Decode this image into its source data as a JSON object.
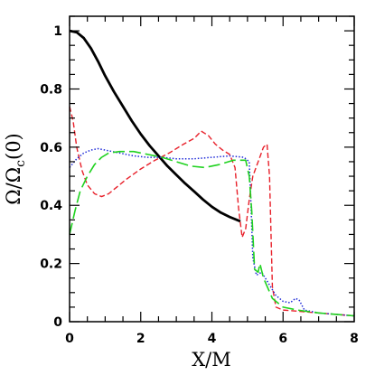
{
  "chart_data": {
    "type": "line",
    "xlabel": "X/M",
    "ylabel": "Ω/Ω",
    "ylabel_subscript": "c",
    "ylabel_suffix": "(0)",
    "xlim": [
      0,
      8
    ],
    "ylim": [
      0,
      1.05
    ],
    "x_ticks": [
      0,
      2,
      4,
      6,
      8
    ],
    "y_ticks": [
      0,
      0.2,
      0.4,
      0.6,
      0.8,
      1
    ],
    "grid": false,
    "series": [
      {
        "color": "#000000",
        "dash": "solid",
        "points": [
          [
            0,
            1.0
          ],
          [
            0.2,
            0.995
          ],
          [
            0.4,
            0.975
          ],
          [
            0.6,
            0.94
          ],
          [
            0.8,
            0.895
          ],
          [
            1.0,
            0.845
          ],
          [
            1.25,
            0.79
          ],
          [
            1.5,
            0.74
          ],
          [
            1.75,
            0.69
          ],
          [
            2.0,
            0.645
          ],
          [
            2.25,
            0.605
          ],
          [
            2.5,
            0.57
          ],
          [
            2.75,
            0.535
          ],
          [
            3.0,
            0.505
          ],
          [
            3.25,
            0.475
          ],
          [
            3.5,
            0.448
          ],
          [
            3.75,
            0.42
          ],
          [
            4.0,
            0.395
          ],
          [
            4.25,
            0.375
          ],
          [
            4.5,
            0.36
          ],
          [
            4.8,
            0.345
          ]
        ]
      },
      {
        "color": "#e8202a",
        "dash": "short-dash",
        "points": [
          [
            0,
            0.74
          ],
          [
            0.1,
            0.69
          ],
          [
            0.2,
            0.6
          ],
          [
            0.35,
            0.52
          ],
          [
            0.5,
            0.47
          ],
          [
            0.7,
            0.44
          ],
          [
            0.9,
            0.43
          ],
          [
            1.1,
            0.44
          ],
          [
            1.3,
            0.46
          ],
          [
            1.6,
            0.49
          ],
          [
            2.0,
            0.525
          ],
          [
            2.4,
            0.555
          ],
          [
            2.8,
            0.58
          ],
          [
            3.2,
            0.61
          ],
          [
            3.5,
            0.63
          ],
          [
            3.7,
            0.655
          ],
          [
            3.9,
            0.64
          ],
          [
            4.1,
            0.61
          ],
          [
            4.3,
            0.59
          ],
          [
            4.5,
            0.575
          ],
          [
            4.65,
            0.53
          ],
          [
            4.75,
            0.39
          ],
          [
            4.85,
            0.29
          ],
          [
            4.95,
            0.32
          ],
          [
            5.05,
            0.42
          ],
          [
            5.15,
            0.5
          ],
          [
            5.3,
            0.55
          ],
          [
            5.45,
            0.6
          ],
          [
            5.55,
            0.61
          ],
          [
            5.62,
            0.5
          ],
          [
            5.7,
            0.12
          ],
          [
            5.8,
            0.05
          ],
          [
            6.0,
            0.04
          ],
          [
            6.5,
            0.035
          ],
          [
            7.0,
            0.03
          ],
          [
            7.5,
            0.025
          ],
          [
            8.0,
            0.02
          ]
        ]
      },
      {
        "color": "#1e2ad8",
        "dash": "dotted",
        "points": [
          [
            0,
            0.53
          ],
          [
            0.2,
            0.56
          ],
          [
            0.4,
            0.58
          ],
          [
            0.6,
            0.59
          ],
          [
            0.8,
            0.595
          ],
          [
            1.0,
            0.59
          ],
          [
            1.4,
            0.58
          ],
          [
            1.8,
            0.57
          ],
          [
            2.2,
            0.565
          ],
          [
            2.6,
            0.565
          ],
          [
            3.0,
            0.56
          ],
          [
            3.5,
            0.56
          ],
          [
            4.0,
            0.565
          ],
          [
            4.5,
            0.57
          ],
          [
            4.9,
            0.565
          ],
          [
            5.05,
            0.55
          ],
          [
            5.1,
            0.4
          ],
          [
            5.15,
            0.22
          ],
          [
            5.25,
            0.16
          ],
          [
            5.4,
            0.17
          ],
          [
            5.6,
            0.13
          ],
          [
            5.8,
            0.09
          ],
          [
            6.0,
            0.07
          ],
          [
            6.2,
            0.065
          ],
          [
            6.35,
            0.08
          ],
          [
            6.45,
            0.075
          ],
          [
            6.6,
            0.04
          ],
          [
            7.0,
            0.03
          ],
          [
            7.5,
            0.025
          ],
          [
            8.0,
            0.02
          ]
        ]
      },
      {
        "color": "#1fd21f",
        "dash": "long-dash",
        "points": [
          [
            0,
            0.3
          ],
          [
            0.15,
            0.38
          ],
          [
            0.3,
            0.45
          ],
          [
            0.5,
            0.5
          ],
          [
            0.7,
            0.54
          ],
          [
            0.9,
            0.565
          ],
          [
            1.1,
            0.58
          ],
          [
            1.4,
            0.585
          ],
          [
            1.8,
            0.585
          ],
          [
            2.2,
            0.575
          ],
          [
            2.6,
            0.565
          ],
          [
            3.0,
            0.55
          ],
          [
            3.4,
            0.535
          ],
          [
            3.8,
            0.53
          ],
          [
            4.2,
            0.54
          ],
          [
            4.6,
            0.555
          ],
          [
            4.95,
            0.555
          ],
          [
            5.05,
            0.5
          ],
          [
            5.12,
            0.38
          ],
          [
            5.2,
            0.18
          ],
          [
            5.3,
            0.17
          ],
          [
            5.35,
            0.2
          ],
          [
            5.45,
            0.15
          ],
          [
            5.7,
            0.08
          ],
          [
            6.0,
            0.05
          ],
          [
            6.4,
            0.04
          ],
          [
            7.0,
            0.03
          ],
          [
            7.5,
            0.025
          ],
          [
            8.0,
            0.02
          ]
        ]
      }
    ]
  }
}
